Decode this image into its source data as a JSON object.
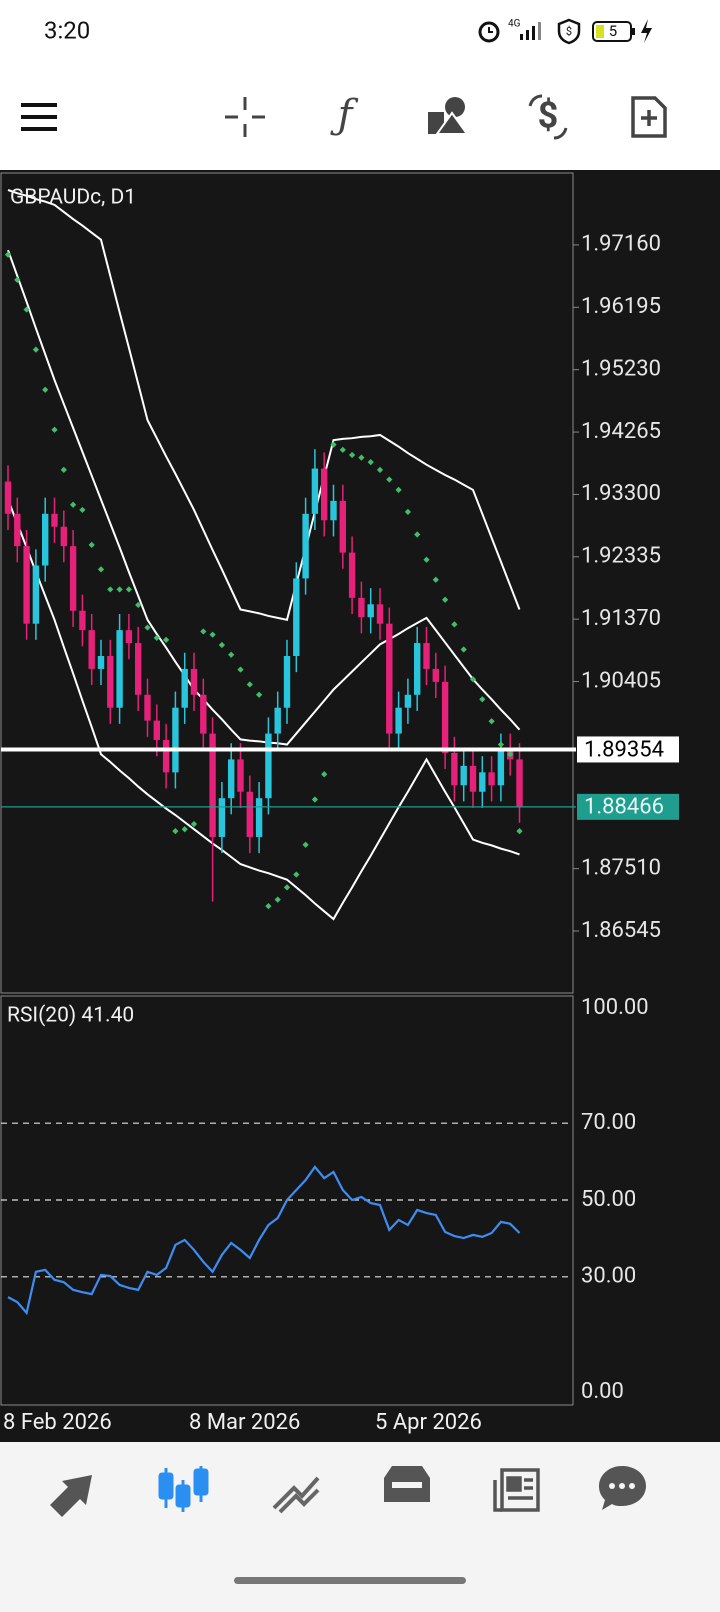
{
  "status_bar": {
    "time": "3:20",
    "battery": "5"
  },
  "chart_data": [
    {
      "type": "candlestick",
      "title": "GBPAUDc, D1",
      "categories": [
        "8 Feb 2026",
        null,
        null,
        null,
        null,
        null,
        null,
        null,
        null,
        null,
        null,
        null,
        null,
        null,
        null,
        null,
        null,
        null,
        null,
        null,
        "8 Mar 2026",
        null,
        null,
        null,
        null,
        null,
        null,
        null,
        null,
        null,
        null,
        null,
        null,
        null,
        null,
        null,
        null,
        null,
        null,
        null,
        "5 Apr 2026",
        null,
        null,
        null,
        null,
        null,
        null,
        null,
        null,
        null,
        null,
        null,
        null,
        null,
        null,
        null
      ],
      "open": [
        1.935,
        1.93,
        1.925,
        1.913,
        1.922,
        1.93,
        1.928,
        1.925,
        1.915,
        1.912,
        1.906,
        1.908,
        1.9,
        1.912,
        1.91,
        1.902,
        1.898,
        1.895,
        1.89,
        1.9,
        1.906,
        1.902,
        1.896,
        1.88,
        1.886,
        1.892,
        1.887,
        1.88,
        1.886,
        1.896,
        1.9,
        1.908,
        1.92,
        1.93,
        1.937,
        1.929,
        1.932,
        1.924,
        1.917,
        1.914,
        1.916,
        1.913,
        1.896,
        1.9,
        1.902,
        1.91,
        1.906,
        1.904,
        1.893,
        1.888,
        1.891,
        1.887,
        1.89,
        1.888,
        1.8935,
        1.892
      ],
      "high": [
        1.9375,
        1.9325,
        1.9275,
        1.9245,
        1.9325,
        1.9325,
        1.9305,
        1.9275,
        1.9175,
        1.9145,
        1.9105,
        1.9105,
        1.9145,
        1.9145,
        1.9125,
        1.9045,
        1.9005,
        1.8975,
        1.9025,
        1.9085,
        1.9085,
        1.9045,
        1.8985,
        1.8885,
        1.8945,
        1.8945,
        1.8895,
        1.8885,
        1.8985,
        1.9025,
        1.9105,
        1.9225,
        1.9325,
        1.94,
        1.9395,
        1.9345,
        1.9345,
        1.9265,
        1.9195,
        1.9185,
        1.9185,
        1.9155,
        1.9025,
        1.9045,
        1.9125,
        1.9125,
        1.9085,
        1.9065,
        1.8955,
        1.8935,
        1.8935,
        1.8925,
        1.8925,
        1.896,
        1.896,
        1.8945
      ],
      "low": [
        1.9275,
        1.9225,
        1.9105,
        1.9105,
        1.9195,
        1.9255,
        1.9225,
        1.9125,
        1.9095,
        1.9035,
        1.9035,
        1.8975,
        1.8975,
        1.9075,
        1.8995,
        1.8955,
        1.8925,
        1.8875,
        1.8875,
        1.8975,
        1.8995,
        1.8935,
        1.87,
        1.8775,
        1.8835,
        1.8845,
        1.8775,
        1.8775,
        1.8835,
        1.8935,
        1.8975,
        1.9055,
        1.9175,
        1.9275,
        1.9265,
        1.9265,
        1.9215,
        1.9145,
        1.9115,
        1.9115,
        1.9105,
        1.8935,
        1.8935,
        1.8975,
        1.8995,
        1.9035,
        1.9015,
        1.8905,
        1.8855,
        1.8855,
        1.8845,
        1.8845,
        1.8855,
        1.8855,
        1.8895,
        1.8822
      ],
      "close": [
        1.93,
        1.925,
        1.913,
        1.922,
        1.93,
        1.928,
        1.925,
        1.915,
        1.912,
        1.906,
        1.908,
        1.9,
        1.912,
        1.91,
        1.902,
        1.898,
        1.895,
        1.89,
        1.9,
        1.906,
        1.902,
        1.896,
        1.88,
        1.886,
        1.892,
        1.887,
        1.88,
        1.886,
        1.896,
        1.9,
        1.908,
        1.92,
        1.93,
        1.937,
        1.929,
        1.932,
        1.924,
        1.917,
        1.914,
        1.916,
        1.913,
        1.896,
        1.9,
        1.902,
        1.91,
        1.906,
        1.904,
        1.893,
        1.888,
        1.891,
        1.887,
        1.89,
        1.888,
        1.8935,
        1.892,
        1.8847
      ],
      "up_color": "#29c5dc",
      "down_color": "#e5217a",
      "bands": {
        "color": "#ffffff",
        "upper": [
          1.9801,
          1.9796,
          1.9792,
          1.9787,
          1.9783,
          1.9778,
          1.9767,
          1.9756,
          1.9746,
          1.9735,
          1.9724,
          1.9668,
          1.9612,
          1.9557,
          1.9501,
          1.9445,
          1.9417,
          1.9389,
          1.9362,
          1.9334,
          1.9306,
          1.9275,
          1.9244,
          1.9214,
          1.9183,
          1.9152,
          1.9149,
          1.9146,
          1.9142,
          1.9139,
          1.9136,
          1.9192,
          1.9247,
          1.9303,
          1.9358,
          1.9414,
          1.9416,
          1.9417,
          1.9419,
          1.942,
          1.9422,
          1.9413,
          1.9404,
          1.9394,
          1.9385,
          1.9376,
          1.9368,
          1.936,
          1.9353,
          1.9345,
          1.9337,
          1.93,
          1.9263,
          1.9226,
          1.9189,
          1.9152
        ],
        "middle": [
          1.9708,
          1.9668,
          1.9628,
          1.9587,
          1.9547,
          1.9507,
          1.947,
          1.9433,
          1.9396,
          1.9359,
          1.9322,
          1.9285,
          1.9248,
          1.921,
          1.9173,
          1.9136,
          1.9114,
          1.9093,
          1.9071,
          1.905,
          1.9028,
          1.9013,
          1.8997,
          1.8982,
          1.8966,
          1.8951,
          1.8949,
          1.8948,
          1.8946,
          1.8945,
          1.8943,
          1.896,
          1.8977,
          1.8994,
          1.9011,
          1.9028,
          1.9042,
          1.9056,
          1.907,
          1.9084,
          1.9098,
          1.9106,
          1.9114,
          1.9123,
          1.9131,
          1.9139,
          1.912,
          1.9101,
          1.9082,
          1.9063,
          1.9044,
          1.9028,
          1.9013,
          1.8997,
          1.8982,
          1.8966
        ],
        "lower": [
          1.9322,
          1.9285,
          1.9248,
          1.921,
          1.9173,
          1.9136,
          1.9094,
          1.9053,
          1.9011,
          1.897,
          1.8928,
          1.8916,
          1.8903,
          1.8891,
          1.8878,
          1.8866,
          1.8855,
          1.8844,
          1.8834,
          1.8823,
          1.8812,
          1.8801,
          1.879,
          1.878,
          1.8769,
          1.8758,
          1.8753,
          1.8748,
          1.8744,
          1.8739,
          1.8734,
          1.8722,
          1.871,
          1.8697,
          1.8685,
          1.8673,
          1.8698,
          1.8722,
          1.8747,
          1.8771,
          1.8796,
          1.8821,
          1.8846,
          1.887,
          1.8895,
          1.892,
          1.8895,
          1.887,
          1.8846,
          1.8821,
          1.8796,
          1.8791,
          1.8787,
          1.8782,
          1.8778,
          1.8773
        ]
      },
      "sar": {
        "color": "#3fbf6a",
        "values": [
          1.9701,
          1.9662,
          1.9616,
          1.9554,
          1.9492,
          1.943,
          1.9368,
          1.9314,
          1.9306,
          1.9252,
          1.9214,
          1.9183,
          1.9183,
          1.9183,
          1.9159,
          1.9124,
          1.9108,
          1.9105,
          1.8809,
          1.8812,
          1.882,
          1.9118,
          1.9113,
          1.9097,
          1.9082,
          1.9059,
          1.9036,
          1.902,
          1.8693,
          1.8703,
          1.8722,
          1.8742,
          1.8788,
          1.8858,
          1.8897,
          1.9407,
          1.9399,
          1.9391,
          1.9387,
          1.938,
          1.9368,
          1.9353,
          1.9337,
          1.9303,
          1.9268,
          1.9229,
          1.9198,
          1.9167,
          1.9129,
          1.909,
          1.9044,
          1.9013,
          1.8979,
          1.8943,
          1.8928,
          1.8809
        ]
      },
      "price_lines": [
        {
          "value": 1.89354,
          "color": "#ffffff"
        },
        {
          "value": 1.88466,
          "color": "#1f9e90"
        }
      ],
      "ylim": [
        1.85586,
        1.98273
      ],
      "yticks": [
        {
          "value": 1.9716,
          "label": "1.97160"
        },
        1.96195,
        {
          "value": 1.9523,
          "label": "1.95230"
        },
        1.94265,
        {
          "value": 1.933,
          "label": "1.93300"
        },
        1.92335,
        {
          "value": 1.9137,
          "label": "1.91370"
        },
        1.90405,
        {
          "value": 1.8751,
          "label": "1.87510"
        },
        1.86545
      ]
    },
    {
      "type": "line",
      "title": "RSI(20) 41.40",
      "color": "#3d8df2",
      "values": [
        24.7,
        23.4,
        20.6,
        31.3,
        31.8,
        29.2,
        28.6,
        26.6,
        26.0,
        25.5,
        30.5,
        30.2,
        27.9,
        27.1,
        26.6,
        31.3,
        30.5,
        32.3,
        38.3,
        39.6,
        37.0,
        33.9,
        31.3,
        35.7,
        38.8,
        37.0,
        34.9,
        39.6,
        43.5,
        45.3,
        50.0,
        52.6,
        55.2,
        58.6,
        55.7,
        57.3,
        52.6,
        50.0,
        50.8,
        49.2,
        48.7,
        42.2,
        44.8,
        43.5,
        47.4,
        46.6,
        46.1,
        41.7,
        40.6,
        40.1,
        40.9,
        40.4,
        41.4,
        44.3,
        43.8,
        41.4
      ],
      "ylim": [
        0,
        100
      ],
      "yticks": [
        {
          "value": 100,
          "label": "100.00"
        },
        {
          "value": 70,
          "label": "70.00"
        },
        {
          "value": 50,
          "label": "50.00"
        },
        {
          "value": 30,
          "label": "30.00"
        },
        {
          "value": 0,
          "label": "0.00"
        }
      ],
      "grid": "dashed"
    }
  ]
}
